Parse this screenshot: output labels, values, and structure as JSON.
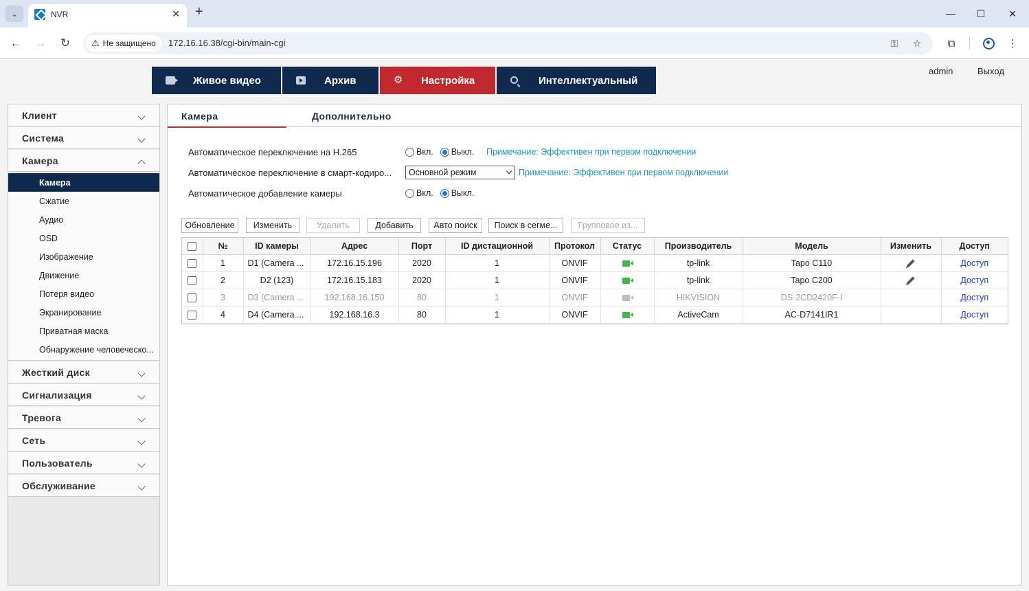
{
  "browser": {
    "tab_title": "NVR",
    "security_label": "Не защищено",
    "url": "172.16.16.38/cgi-bin/main-cgi"
  },
  "topnav": {
    "items": [
      {
        "label": "Живое видео",
        "icon": "video-camera-icon",
        "active": false
      },
      {
        "label": "Архив",
        "icon": "playback-icon",
        "active": false
      },
      {
        "label": "Настройка",
        "icon": "gear-icon",
        "active": true
      },
      {
        "label": "Интеллектуальный",
        "icon": "search-icon",
        "active": false
      }
    ],
    "user": "admin",
    "logout": "Выход"
  },
  "sidebar": {
    "groups": [
      {
        "label": "Клиент"
      },
      {
        "label": "Система"
      },
      {
        "label": "Камера"
      },
      {
        "label": "Жесткий диск"
      },
      {
        "label": "Сигнализация"
      },
      {
        "label": "Тревога"
      },
      {
        "label": "Сеть"
      },
      {
        "label": "Пользователь"
      },
      {
        "label": "Обслуживание"
      }
    ],
    "camera_items": [
      {
        "label": "Камера"
      },
      {
        "label": "Сжатие"
      },
      {
        "label": "Аудио"
      },
      {
        "label": "OSD"
      },
      {
        "label": "Изображение"
      },
      {
        "label": "Движение"
      },
      {
        "label": "Потеря видео"
      },
      {
        "label": "Экранирование"
      },
      {
        "label": "Приватная маска"
      },
      {
        "label": "Обнаружение человеческо..."
      }
    ]
  },
  "subtabs": {
    "camera": "Камера",
    "advanced": "Дополнительно"
  },
  "settings": {
    "h265_label": "Автоматическое переключение на H.265",
    "smart_label": "Автоматическое переключение в смарт-кодиро...",
    "autoadd_label": "Автоматическое добавление камеры",
    "on": "Вкл.",
    "off": "Выкл.",
    "note": "Примечание: Эффективен при первом подключении",
    "smart_mode_value": "Основной режим"
  },
  "toolbar": {
    "refresh": "Обновление",
    "edit": "Изменить",
    "delete": "Удалить",
    "add": "Добавить",
    "auto_search": "Авто поиск",
    "segment_search": "Поиск в сегме...",
    "batch": "Групповое из..."
  },
  "table": {
    "headers": {
      "no": "№",
      "camera_id": "ID камеры",
      "address": "Адрес",
      "port": "Порт",
      "remote_id": "ID дистационной",
      "protocol": "Протокол",
      "status": "Статус",
      "manufacturer": "Производитель",
      "model": "Модель",
      "edit": "Изменить",
      "access": "Доступ"
    },
    "rows": [
      {
        "no": "1",
        "camera_id": "D1 (Camera ...",
        "address": "172.16.15.196",
        "port": "2020",
        "remote_id": "1",
        "protocol": "ONVIF",
        "status": "online",
        "manufacturer": "tp-link",
        "model": "Tapo C110",
        "access": "Доступ"
      },
      {
        "no": "2",
        "camera_id": "D2 (123)",
        "address": "172.16.15.183",
        "port": "2020",
        "remote_id": "1",
        "protocol": "ONVIF",
        "status": "online",
        "manufacturer": "tp-link",
        "model": "Tapo C200",
        "access": "Доступ"
      },
      {
        "no": "3",
        "camera_id": "D3 (Camera ...",
        "address": "192.168.16.150",
        "port": "80",
        "remote_id": "1",
        "protocol": "ONVIF",
        "status": "offline",
        "manufacturer": "HIKVISION",
        "model": "DS-2CD2420F-I",
        "access": "Доступ"
      },
      {
        "no": "4",
        "camera_id": "D4 (Camera ...",
        "address": "192.168.16.3",
        "port": "80",
        "remote_id": "1",
        "protocol": "ONVIF",
        "status": "online",
        "manufacturer": "ActiveCam",
        "model": "AC-D7141IR1",
        "access": "Доступ"
      }
    ]
  }
}
